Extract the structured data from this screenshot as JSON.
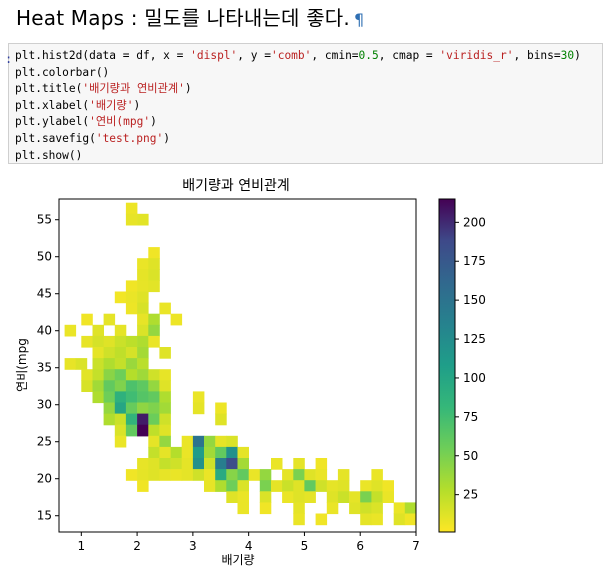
{
  "heading": {
    "title": "Heat Maps : 밀도를 나타내는데 좋다.",
    "pilcrow": "¶"
  },
  "code": {
    "lines": [
      "plt.hist2d(data = df, x = 'displ', y ='comb', cmin=0.5, cmap = 'viridis_r', bins=30)",
      "plt.colorbar()",
      "plt.title('배기량과 연비관계')",
      "plt.xlabel('배기량')",
      "plt.ylabel('연비(mpg')",
      "plt.savefig('test.png')",
      "plt.show()"
    ]
  },
  "chart_data": {
    "type": "heatmap",
    "title": "배기량과 연비관계",
    "xlabel": "배기량",
    "ylabel": "연비(mpg",
    "xlim": [
      0.6,
      7.0
    ],
    "ylim": [
      12.8,
      57.8
    ],
    "x_ticks": [
      1,
      2,
      3,
      4,
      5,
      6,
      7
    ],
    "y_ticks": [
      15,
      20,
      25,
      30,
      35,
      40,
      45,
      50,
      55
    ],
    "colormap": "viridis_r",
    "colorbar": {
      "min": 1,
      "max": 215,
      "ticks": [
        25,
        50,
        75,
        100,
        125,
        150,
        175,
        200
      ]
    },
    "bins_x": 30,
    "bins_y": 30,
    "cells": [
      [
        1.8,
        55.8,
        7
      ],
      [
        1.8,
        54.3,
        9
      ],
      [
        2.0,
        54.3,
        11
      ],
      [
        2.2,
        49.8,
        6
      ],
      [
        2.0,
        48.3,
        8
      ],
      [
        2.2,
        48.3,
        12
      ],
      [
        2.0,
        46.8,
        10
      ],
      [
        2.2,
        46.8,
        14
      ],
      [
        1.8,
        45.3,
        6
      ],
      [
        2.0,
        45.3,
        9
      ],
      [
        2.2,
        45.3,
        11
      ],
      [
        1.6,
        43.8,
        5
      ],
      [
        1.8,
        43.8,
        8
      ],
      [
        2.0,
        43.8,
        12
      ],
      [
        1.8,
        42.3,
        7
      ],
      [
        2.0,
        42.3,
        15
      ],
      [
        2.4,
        42.3,
        8
      ],
      [
        1.0,
        40.8,
        6
      ],
      [
        1.4,
        40.8,
        10
      ],
      [
        2.0,
        40.8,
        9
      ],
      [
        2.2,
        40.8,
        30
      ],
      [
        2.6,
        40.8,
        7
      ],
      [
        0.7,
        39.3,
        8
      ],
      [
        1.2,
        39.3,
        12
      ],
      [
        1.6,
        39.3,
        10
      ],
      [
        2.0,
        39.3,
        14
      ],
      [
        2.2,
        39.3,
        40
      ],
      [
        1.0,
        37.8,
        9
      ],
      [
        1.2,
        37.8,
        16
      ],
      [
        1.4,
        37.8,
        12
      ],
      [
        1.6,
        37.8,
        20
      ],
      [
        1.8,
        37.8,
        25
      ],
      [
        2.0,
        37.8,
        30
      ],
      [
        2.2,
        37.8,
        8
      ],
      [
        1.2,
        36.3,
        10
      ],
      [
        1.4,
        36.3,
        18
      ],
      [
        1.6,
        36.3,
        24
      ],
      [
        1.8,
        36.3,
        16
      ],
      [
        2.0,
        36.3,
        34
      ],
      [
        2.4,
        36.3,
        12
      ],
      [
        0.7,
        34.8,
        9
      ],
      [
        0.9,
        34.8,
        14
      ],
      [
        1.2,
        34.8,
        20
      ],
      [
        1.4,
        34.8,
        30
      ],
      [
        1.6,
        34.8,
        22
      ],
      [
        1.8,
        34.8,
        38
      ],
      [
        2.0,
        34.8,
        26
      ],
      [
        1.0,
        33.3,
        11
      ],
      [
        1.2,
        33.3,
        22
      ],
      [
        1.4,
        33.3,
        44
      ],
      [
        1.6,
        33.3,
        55
      ],
      [
        1.8,
        33.3,
        28
      ],
      [
        2.0,
        33.3,
        36
      ],
      [
        2.2,
        33.3,
        18
      ],
      [
        2.4,
        33.3,
        9
      ],
      [
        1.0,
        31.8,
        15
      ],
      [
        1.2,
        31.8,
        35
      ],
      [
        1.4,
        31.8,
        60
      ],
      [
        1.6,
        31.8,
        48
      ],
      [
        1.8,
        31.8,
        70
      ],
      [
        2.0,
        31.8,
        62
      ],
      [
        2.2,
        31.8,
        40
      ],
      [
        2.4,
        31.8,
        12
      ],
      [
        1.2,
        30.3,
        30
      ],
      [
        1.4,
        30.3,
        55
      ],
      [
        1.6,
        30.3,
        88
      ],
      [
        1.8,
        30.3,
        76
      ],
      [
        2.0,
        30.3,
        66
      ],
      [
        2.2,
        30.3,
        60
      ],
      [
        2.4,
        30.3,
        30
      ],
      [
        3.0,
        30.3,
        8
      ],
      [
        1.4,
        28.8,
        40
      ],
      [
        1.6,
        28.8,
        100
      ],
      [
        1.8,
        28.8,
        58
      ],
      [
        2.0,
        28.8,
        42
      ],
      [
        2.2,
        28.8,
        48
      ],
      [
        2.4,
        28.8,
        35
      ],
      [
        3.0,
        28.8,
        10
      ],
      [
        3.4,
        28.8,
        7
      ],
      [
        1.4,
        27.3,
        30
      ],
      [
        1.6,
        27.3,
        20
      ],
      [
        1.8,
        27.3,
        85
      ],
      [
        2.0,
        27.3,
        205
      ],
      [
        2.2,
        27.3,
        56
      ],
      [
        2.4,
        27.3,
        18
      ],
      [
        3.4,
        27.3,
        12
      ],
      [
        1.6,
        25.8,
        14
      ],
      [
        1.8,
        25.8,
        60
      ],
      [
        2.0,
        25.8,
        215
      ],
      [
        2.2,
        25.8,
        24
      ],
      [
        2.4,
        25.8,
        12
      ],
      [
        1.6,
        24.3,
        8
      ],
      [
        2.2,
        24.3,
        10
      ],
      [
        2.4,
        24.3,
        40
      ],
      [
        2.8,
        24.3,
        8
      ],
      [
        3.0,
        24.3,
        150
      ],
      [
        3.2,
        24.3,
        40
      ],
      [
        3.4,
        24.3,
        10
      ],
      [
        3.6,
        24.3,
        14
      ],
      [
        2.2,
        22.8,
        22
      ],
      [
        2.4,
        22.8,
        10
      ],
      [
        2.6,
        22.8,
        28
      ],
      [
        2.8,
        22.8,
        8
      ],
      [
        3.0,
        22.8,
        110
      ],
      [
        3.2,
        22.8,
        35
      ],
      [
        3.4,
        22.8,
        60
      ],
      [
        3.6,
        22.8,
        120
      ],
      [
        3.8,
        22.8,
        10
      ],
      [
        2.0,
        21.3,
        9
      ],
      [
        2.2,
        21.3,
        12
      ],
      [
        2.4,
        21.3,
        22
      ],
      [
        2.6,
        21.3,
        18
      ],
      [
        2.8,
        21.3,
        10
      ],
      [
        3.0,
        21.3,
        120
      ],
      [
        3.2,
        21.3,
        18
      ],
      [
        3.4,
        21.3,
        140
      ],
      [
        3.6,
        21.3,
        185
      ],
      [
        3.8,
        21.3,
        34
      ],
      [
        4.4,
        21.3,
        8
      ],
      [
        4.8,
        21.3,
        10
      ],
      [
        5.2,
        21.3,
        6
      ],
      [
        1.8,
        19.8,
        6
      ],
      [
        2.0,
        19.8,
        10
      ],
      [
        2.2,
        19.8,
        12
      ],
      [
        2.4,
        19.8,
        9
      ],
      [
        2.6,
        19.8,
        8
      ],
      [
        2.8,
        19.8,
        10
      ],
      [
        3.0,
        19.8,
        18
      ],
      [
        3.2,
        19.8,
        8
      ],
      [
        3.4,
        19.8,
        95
      ],
      [
        3.6,
        19.8,
        45
      ],
      [
        3.8,
        19.8,
        60
      ],
      [
        4.0,
        19.8,
        8
      ],
      [
        4.2,
        19.8,
        40
      ],
      [
        4.6,
        19.8,
        10
      ],
      [
        4.8,
        19.8,
        50
      ],
      [
        5.0,
        19.8,
        12
      ],
      [
        5.2,
        19.8,
        8
      ],
      [
        5.6,
        19.8,
        10
      ],
      [
        6.2,
        19.8,
        8
      ],
      [
        2.0,
        18.3,
        6
      ],
      [
        3.2,
        18.3,
        9
      ],
      [
        3.4,
        18.3,
        30
      ],
      [
        3.6,
        18.3,
        55
      ],
      [
        3.8,
        18.3,
        14
      ],
      [
        4.2,
        18.3,
        50
      ],
      [
        4.4,
        18.3,
        10
      ],
      [
        4.6,
        18.3,
        20
      ],
      [
        4.8,
        18.3,
        12
      ],
      [
        5.0,
        18.3,
        60
      ],
      [
        5.2,
        18.3,
        18
      ],
      [
        5.4,
        18.3,
        10
      ],
      [
        5.6,
        18.3,
        12
      ],
      [
        6.0,
        18.3,
        8
      ],
      [
        6.2,
        18.3,
        12
      ],
      [
        6.4,
        18.3,
        6
      ],
      [
        3.6,
        16.8,
        12
      ],
      [
        3.8,
        16.8,
        8
      ],
      [
        4.2,
        16.8,
        14
      ],
      [
        4.6,
        16.8,
        8
      ],
      [
        4.8,
        16.8,
        12
      ],
      [
        5.0,
        16.8,
        10
      ],
      [
        5.4,
        16.8,
        12
      ],
      [
        5.6,
        16.8,
        20
      ],
      [
        5.8,
        16.8,
        10
      ],
      [
        6.0,
        16.8,
        50
      ],
      [
        6.2,
        16.8,
        22
      ],
      [
        6.4,
        16.8,
        8
      ],
      [
        3.8,
        15.3,
        8
      ],
      [
        4.2,
        15.3,
        6
      ],
      [
        4.8,
        15.3,
        10
      ],
      [
        5.4,
        15.3,
        8
      ],
      [
        5.8,
        15.3,
        12
      ],
      [
        6.0,
        15.3,
        18
      ],
      [
        6.2,
        15.3,
        14
      ],
      [
        6.6,
        15.3,
        8
      ],
      [
        6.8,
        15.3,
        30
      ],
      [
        4.8,
        13.8,
        8
      ],
      [
        5.2,
        13.8,
        6
      ],
      [
        6.0,
        13.8,
        10
      ],
      [
        6.2,
        13.8,
        8
      ],
      [
        6.6,
        13.8,
        12
      ],
      [
        6.8,
        13.8,
        6
      ]
    ]
  }
}
